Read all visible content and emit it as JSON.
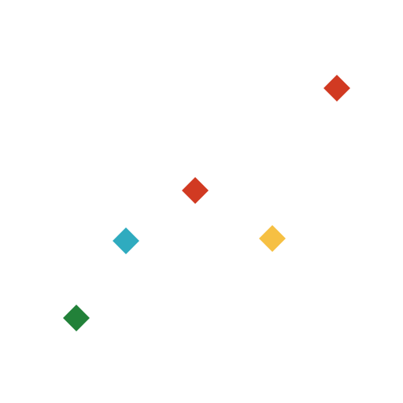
{
  "canvas": {
    "background": "#ffffff"
  },
  "shapes": [
    {
      "name": "diamond-red-top",
      "shape": "diamond",
      "color": "#d13a22"
    },
    {
      "name": "diamond-red-middle",
      "shape": "diamond",
      "color": "#d13a22"
    },
    {
      "name": "diamond-teal",
      "shape": "diamond",
      "color": "#2fabbf"
    },
    {
      "name": "diamond-yellow",
      "shape": "diamond",
      "color": "#f6c043"
    },
    {
      "name": "diamond-green",
      "shape": "diamond",
      "color": "#228139"
    }
  ]
}
